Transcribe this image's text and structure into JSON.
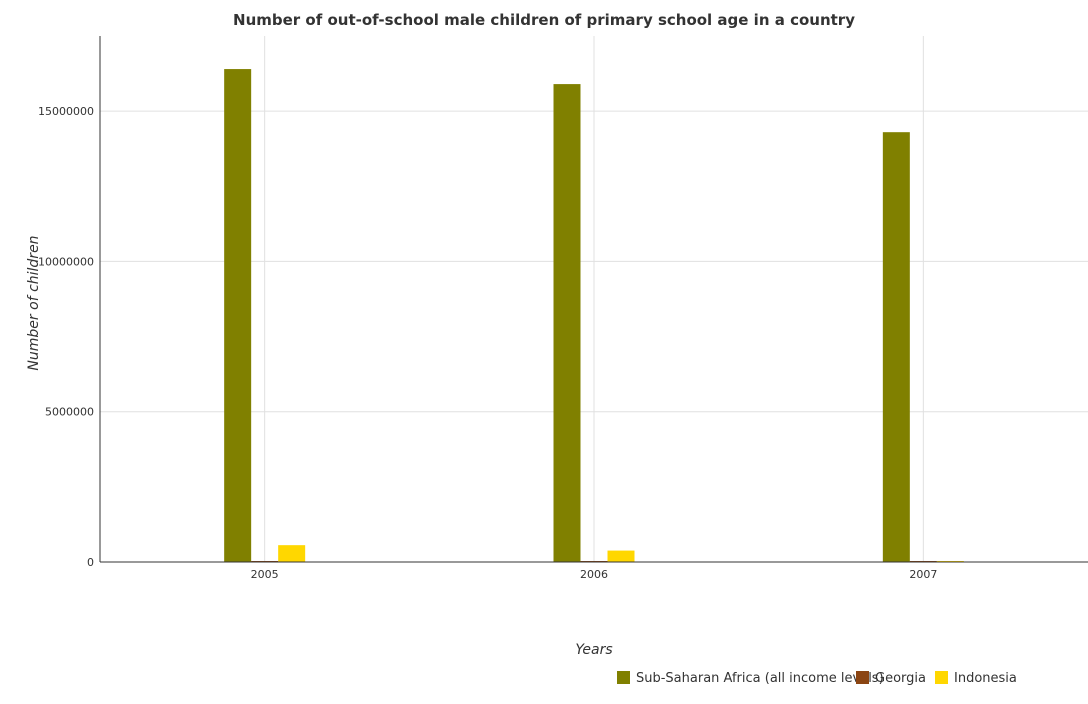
{
  "chart_data": {
    "type": "bar",
    "title": "Number of out-of-school male children of primary school age in a country",
    "xlabel": "Years",
    "ylabel": "Number of children",
    "categories": [
      "2005",
      "2006",
      "2007"
    ],
    "ylim": [
      0,
      17500000
    ],
    "yticks": [
      0,
      5000000,
      10000000,
      15000000
    ],
    "ytick_labels": [
      "0",
      "5000000",
      "10000000",
      "15000000"
    ],
    "grid": true,
    "legend_position": "bottom-right",
    "series": [
      {
        "name": "Sub-Saharan Africa (all income levels)",
        "color": "#808000",
        "values": [
          16400000,
          15900000,
          14300000
        ]
      },
      {
        "name": "Georgia",
        "color": "#8b4513",
        "values": [
          12000,
          8000,
          7000
        ]
      },
      {
        "name": "Indonesia",
        "color": "#ffd700",
        "values": [
          560000,
          380000,
          20000
        ]
      }
    ]
  }
}
